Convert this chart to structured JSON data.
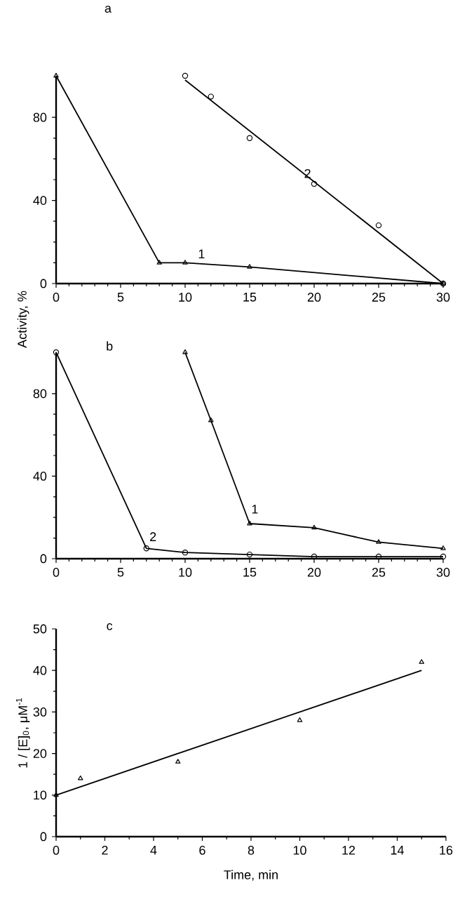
{
  "chart_data": [
    {
      "type": "line",
      "title": "a",
      "xlim": [
        0,
        30
      ],
      "ylim": [
        0,
        100
      ],
      "xticks": [
        0,
        5,
        10,
        15,
        20,
        25,
        30
      ],
      "yticks": [
        0,
        40,
        80
      ],
      "series": [
        {
          "name": "1",
          "marker": "triangle",
          "color": "#000000",
          "x": [
            0,
            8,
            10,
            15,
            30
          ],
          "values": [
            100,
            10,
            10,
            8,
            0
          ]
        },
        {
          "name": "2",
          "type": "scatter",
          "marker": "circle",
          "color": "#000000",
          "x": [
            10,
            12,
            15,
            20,
            25,
            30
          ],
          "values": [
            100,
            90,
            70,
            48,
            28,
            0
          ]
        },
        {
          "marker": "none",
          "color": "#000000",
          "x": [
            10,
            30
          ],
          "values": [
            98,
            0
          ]
        }
      ]
    },
    {
      "type": "line",
      "title": "b",
      "ylabel": "Activity, %",
      "xlim": [
        0,
        30
      ],
      "ylim": [
        0,
        100
      ],
      "xticks": [
        0,
        5,
        10,
        15,
        20,
        25,
        30
      ],
      "yticks": [
        0,
        40,
        80
      ],
      "series": [
        {
          "name": "1",
          "marker": "triangle",
          "color": "#000000",
          "x": [
            10,
            12,
            15,
            20,
            25,
            30
          ],
          "values": [
            100,
            67,
            17,
            15,
            8,
            5
          ]
        },
        {
          "name": "2",
          "marker": "circle",
          "color": "#000000",
          "x": [
            0,
            7,
            10,
            15,
            20,
            25,
            30
          ],
          "values": [
            100,
            5,
            3,
            2,
            1,
            1,
            1
          ]
        }
      ]
    },
    {
      "type": "scatter",
      "title": "c",
      "xlabel": "Time, min",
      "ylabel": "1 / [E]$_{0}$, μM$^{-1}$",
      "xlim": [
        0,
        16
      ],
      "ylim": [
        0,
        50
      ],
      "xticks": [
        0,
        2,
        4,
        6,
        8,
        10,
        12,
        14,
        16
      ],
      "yticks": [
        0,
        10,
        20,
        30,
        40,
        50
      ],
      "series": [
        {
          "marker": "triangle",
          "color": "#000000",
          "x": [
            0,
            1,
            5,
            10,
            15
          ],
          "values": [
            10,
            14,
            18,
            28,
            42
          ]
        },
        {
          "type": "line",
          "marker": "none",
          "color": "#000000",
          "x": [
            0,
            15
          ],
          "values": [
            10,
            40
          ]
        }
      ]
    }
  ]
}
